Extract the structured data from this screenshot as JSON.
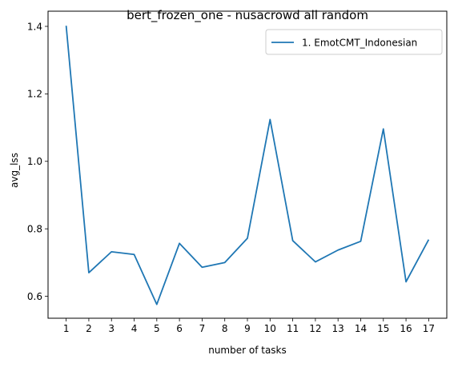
{
  "chart_data": {
    "type": "line",
    "title": "bert_frozen_one - nusacrowd all random",
    "xlabel": "number of tasks",
    "ylabel": "avg_lss",
    "x": [
      1,
      2,
      3,
      4,
      5,
      6,
      7,
      8,
      9,
      10,
      11,
      12,
      13,
      14,
      15,
      16,
      17
    ],
    "x_tick_labels": [
      "1",
      "2",
      "3",
      "4",
      "5",
      "6",
      "7",
      "8",
      "9",
      "10",
      "11",
      "12",
      "13",
      "14",
      "15",
      "16",
      "17"
    ],
    "xlim": [
      0.2,
      17.8
    ],
    "ylim": [
      0.535,
      1.445
    ],
    "y_ticks": [
      0.6,
      0.8,
      1.0,
      1.2,
      1.4
    ],
    "y_tick_labels": [
      "0.6",
      "0.8",
      "1.0",
      "1.2",
      "1.4"
    ],
    "grid": false,
    "legend_position": "top-right",
    "series": [
      {
        "name": "1. EmotCMT_Indonesian",
        "color": "#1f77b4",
        "values": [
          1.402,
          0.67,
          0.732,
          0.724,
          0.576,
          0.757,
          0.686,
          0.7,
          0.772,
          1.124,
          0.765,
          0.702,
          0.737,
          0.763,
          1.096,
          0.643,
          0.768
        ]
      }
    ]
  }
}
